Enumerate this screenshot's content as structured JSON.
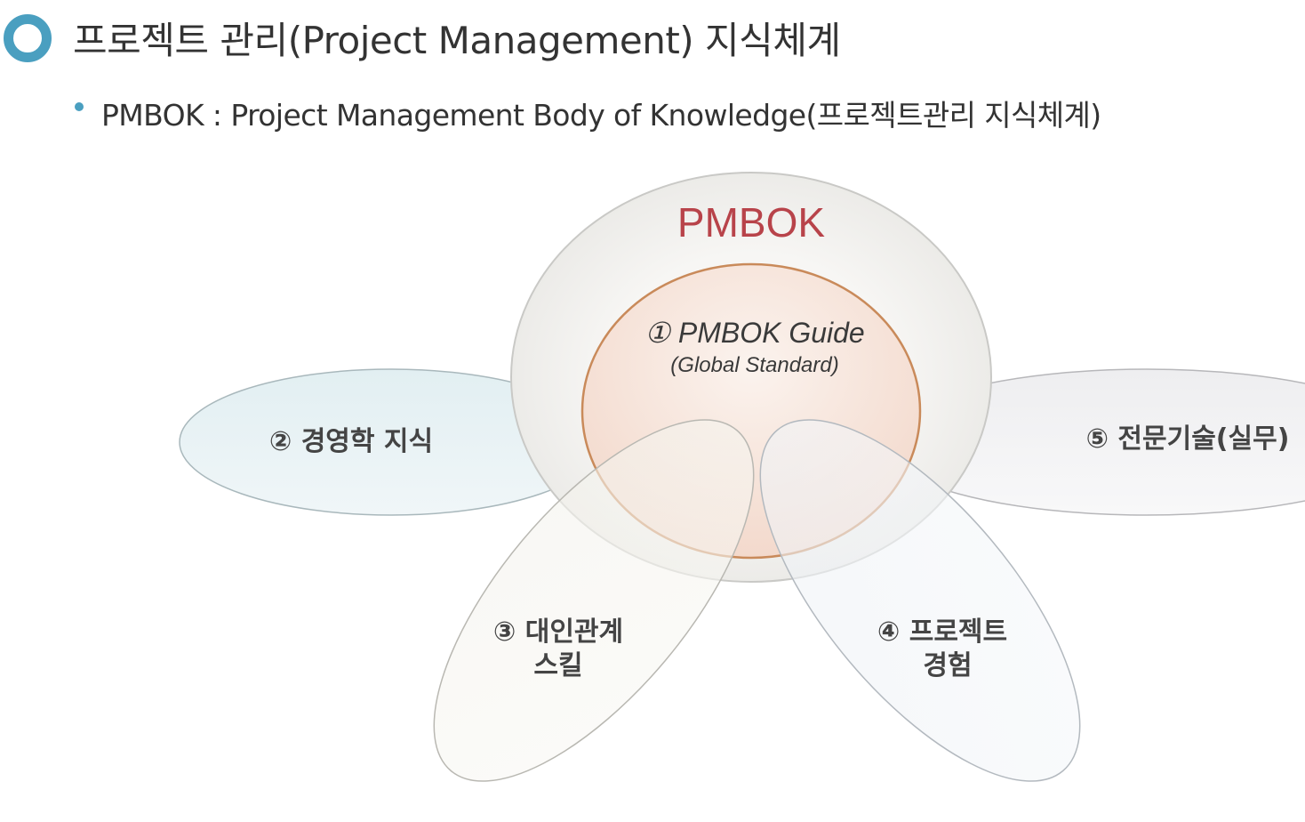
{
  "header": {
    "title": "프로젝트 관리(Project Management) 지식체계",
    "subtitle": "PMBOK : Project Management Body of Knowledge(프로젝트관리 지식체계)"
  },
  "diagram": {
    "outer_label": "PMBOK",
    "core_label": "① PMBOK Guide",
    "core_sublabel": "(Global Standard)",
    "petals": [
      {
        "id": "business",
        "lines": [
          "② 경영학 지식"
        ]
      },
      {
        "id": "expertise",
        "lines": [
          "⑤ 전문기술(실무)"
        ]
      },
      {
        "id": "interpersonal",
        "lines": [
          "③ 대인관계",
          "스킬"
        ]
      },
      {
        "id": "experience",
        "lines": [
          "④ 프로젝트",
          "경험"
        ]
      }
    ]
  },
  "colors": {
    "accent": "#4a9fc0",
    "pmbok_title": "#b8434a",
    "core_border": "#c98a5a"
  }
}
